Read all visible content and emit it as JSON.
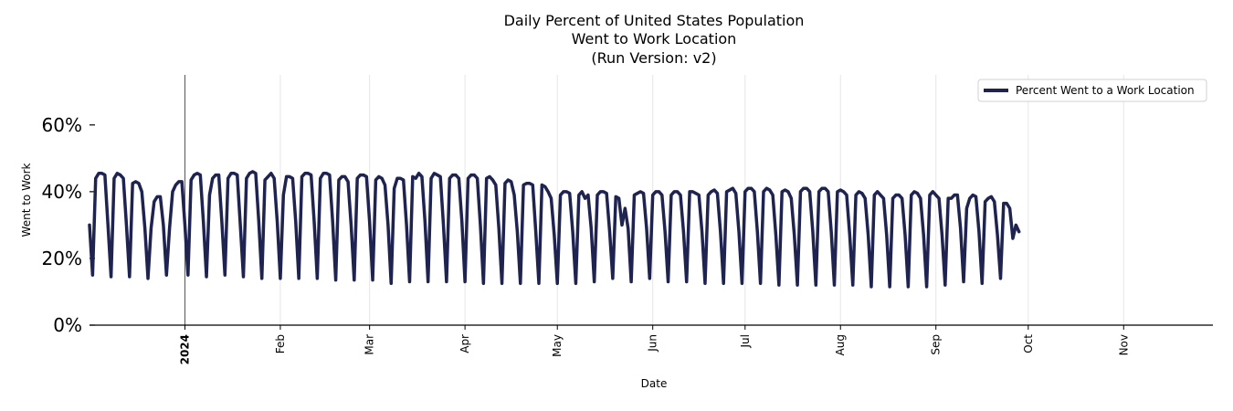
{
  "chart_data": {
    "type": "line",
    "title_lines": [
      "Daily Percent of United States Population",
      "Went to Work Location",
      "(Run Version: v2)"
    ],
    "xlabel": "Date",
    "ylabel": "Went to Work",
    "ylim": [
      0,
      75
    ],
    "yticks": [
      0,
      20,
      40,
      60
    ],
    "ytick_labels": [
      "0%",
      "20%",
      "40%",
      "60%"
    ],
    "x_start": "2023-12-01",
    "x_end": "2024-11-30",
    "xticks": [
      {
        "date": "2024-01-01",
        "label": "2024",
        "bold": true
      },
      {
        "date": "2024-02-01",
        "label": "Feb",
        "bold": false
      },
      {
        "date": "2024-03-01",
        "label": "Mar",
        "bold": false
      },
      {
        "date": "2024-04-01",
        "label": "Apr",
        "bold": false
      },
      {
        "date": "2024-05-01",
        "label": "May",
        "bold": false
      },
      {
        "date": "2024-06-01",
        "label": "Jun",
        "bold": false
      },
      {
        "date": "2024-07-01",
        "label": "Jul",
        "bold": false
      },
      {
        "date": "2024-08-01",
        "label": "Aug",
        "bold": false
      },
      {
        "date": "2024-09-01",
        "label": "Sep",
        "bold": false
      },
      {
        "date": "2024-10-01",
        "label": "Oct",
        "bold": false
      },
      {
        "date": "2024-11-01",
        "label": "Nov",
        "bold": false
      }
    ],
    "year_marker": "2024-01-01",
    "legend": {
      "label": "Percent Went to a Work Location",
      "placement": "top-right"
    },
    "color": "#1f2350",
    "series": [
      {
        "name": "Percent Went to a Work Location",
        "start_date": "2023-12-01",
        "values": [
          30,
          15,
          44,
          45.5,
          45.5,
          45,
          30,
          14.5,
          44,
          45.5,
          45,
          44,
          30,
          14.5,
          42.5,
          43,
          42.5,
          40,
          29,
          14,
          29,
          37,
          38.5,
          38.5,
          30,
          15,
          29,
          40,
          42,
          43,
          43,
          30,
          15,
          43.5,
          45,
          45.5,
          45,
          31,
          14.5,
          39,
          44,
          45,
          45,
          31,
          15,
          44,
          45.5,
          45.5,
          45,
          30,
          14.5,
          44,
          45.5,
          46,
          45.5,
          31,
          14,
          43.5,
          44.5,
          45.5,
          44,
          31,
          14,
          39,
          44.5,
          44.5,
          44,
          31,
          14,
          44.5,
          45.5,
          45.5,
          45,
          31,
          14,
          44,
          45.5,
          45.5,
          45,
          31,
          13.5,
          43.5,
          44.5,
          44.5,
          43,
          30,
          13.5,
          44,
          45,
          45,
          44.5,
          31,
          13.5,
          43.5,
          44.5,
          44,
          42,
          30,
          12.5,
          41,
          44,
          44,
          43.5,
          30,
          13,
          44.5,
          44,
          45.5,
          44.5,
          31,
          13,
          44,
          45.5,
          45,
          44.5,
          30,
          13,
          44,
          45,
          45,
          44,
          31,
          13,
          44,
          45,
          45,
          44,
          30,
          12.5,
          44,
          44.5,
          43.5,
          42,
          29,
          12.5,
          42.5,
          43.5,
          43,
          39,
          28,
          12.5,
          42,
          42.5,
          42.5,
          42,
          28,
          12.5,
          42,
          41.5,
          40,
          38,
          27,
          12.5,
          39,
          40,
          40,
          39.5,
          28,
          12.5,
          39,
          40,
          38,
          39,
          29,
          13,
          39,
          40,
          40,
          39.5,
          28,
          14,
          38.5,
          38,
          30,
          35,
          29,
          13,
          39,
          39.5,
          40,
          39.5,
          29,
          14,
          39,
          40,
          40,
          39,
          28,
          13,
          39,
          40,
          40,
          39,
          28,
          13,
          40,
          40,
          39.5,
          39,
          28,
          12.5,
          39,
          40,
          40.5,
          39.5,
          28,
          12.5,
          40,
          40.5,
          41,
          39.5,
          28,
          12.5,
          40,
          41,
          41,
          40,
          28,
          12.5,
          40,
          41,
          40.5,
          39,
          27,
          12,
          40,
          40.5,
          40,
          38,
          27,
          12,
          40,
          41,
          41,
          40,
          28,
          12,
          40,
          41,
          41,
          40,
          28,
          12,
          40,
          40.5,
          40,
          39,
          27,
          12,
          39,
          40,
          39.5,
          38,
          27,
          11.5,
          39,
          40,
          39,
          38,
          27,
          11.5,
          38,
          39,
          39,
          38,
          27,
          11.5,
          39,
          40,
          39.5,
          38,
          27,
          11.5,
          39,
          40,
          39,
          38,
          27,
          12,
          38,
          38,
          39,
          39,
          29,
          13,
          35,
          38,
          39,
          38.5,
          28,
          12.5,
          37,
          38,
          38.5,
          37,
          27,
          14,
          36.5,
          36.5,
          35,
          26,
          30,
          28
        ]
      }
    ]
  }
}
